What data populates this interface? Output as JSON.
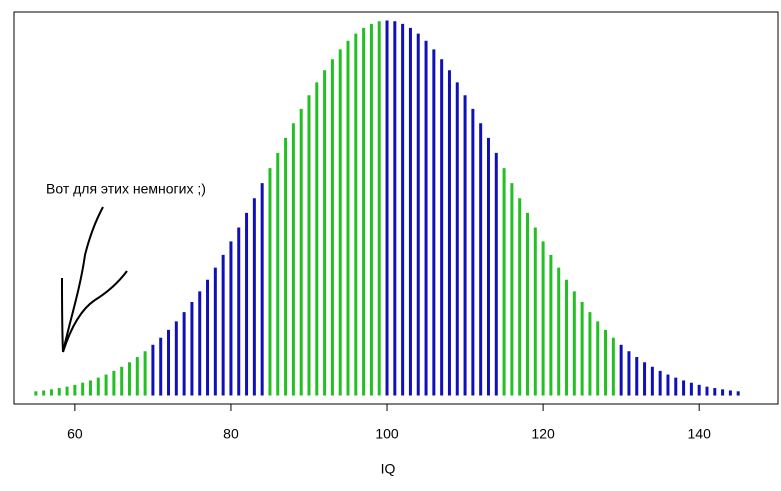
{
  "chart_data": {
    "type": "spike",
    "annotation": "Вот для этих немногих ;)",
    "xlabel": "IQ",
    "xlim": [
      52.2,
      150.1
    ],
    "ylim": [
      -0.0006,
      0.0272
    ],
    "xticks": [
      60,
      80,
      100,
      120,
      140
    ],
    "x": [
      55,
      56,
      57,
      58,
      59,
      60,
      61,
      62,
      63,
      64,
      65,
      66,
      67,
      68,
      69,
      70,
      71,
      72,
      73,
      74,
      75,
      76,
      77,
      78,
      79,
      80,
      81,
      82,
      83,
      84,
      85,
      86,
      87,
      88,
      89,
      90,
      91,
      92,
      93,
      94,
      95,
      96,
      97,
      98,
      99,
      100,
      101,
      102,
      103,
      104,
      105,
      106,
      107,
      108,
      109,
      110,
      111,
      112,
      113,
      114,
      115,
      116,
      117,
      118,
      119,
      120,
      121,
      122,
      123,
      124,
      125,
      126,
      127,
      128,
      129,
      130,
      131,
      132,
      133,
      134,
      135,
      136,
      137,
      138,
      139,
      140,
      141,
      142,
      143,
      144,
      145
    ],
    "values": [
      0.0003,
      0.00036,
      0.00044,
      0.00053,
      0.00063,
      0.00076,
      0.00091,
      0.00107,
      0.00127,
      0.00149,
      0.00175,
      0.00204,
      0.00236,
      0.00273,
      0.00314,
      0.0036,
      0.0041,
      0.00466,
      0.00526,
      0.00592,
      0.00663,
      0.00739,
      0.00821,
      0.00907,
      0.00998,
      0.01093,
      0.01192,
      0.01295,
      0.01399,
      0.01506,
      0.01613,
      0.01721,
      0.01827,
      0.01931,
      0.02033,
      0.0213,
      0.02221,
      0.02307,
      0.02385,
      0.02455,
      0.02516,
      0.02567,
      0.02607,
      0.02636,
      0.02654,
      0.0266,
      0.02654,
      0.02636,
      0.02607,
      0.02567,
      0.02516,
      0.02455,
      0.02385,
      0.02307,
      0.02221,
      0.0213,
      0.02033,
      0.01931,
      0.01827,
      0.01721,
      0.01613,
      0.01506,
      0.01399,
      0.01295,
      0.01192,
      0.01093,
      0.00998,
      0.00907,
      0.00821,
      0.00739,
      0.00663,
      0.00592,
      0.00526,
      0.00466,
      0.0041,
      0.0036,
      0.00314,
      0.00273,
      0.00236,
      0.00204,
      0.00175,
      0.00149,
      0.00127,
      0.00107,
      0.00091,
      0.00076,
      0.00063,
      0.00053,
      0.00044,
      0.00036,
      0.0003
    ],
    "colors": [
      "#22c022",
      "#22c022",
      "#22c022",
      "#22c022",
      "#22c022",
      "#22c022",
      "#22c022",
      "#22c022",
      "#22c022",
      "#22c022",
      "#22c022",
      "#22c022",
      "#22c022",
      "#22c022",
      "#22c022",
      "#1010b8",
      "#1010b8",
      "#1010b8",
      "#1010b8",
      "#1010b8",
      "#1010b8",
      "#1010b8",
      "#1010b8",
      "#1010b8",
      "#1010b8",
      "#1010b8",
      "#1010b8",
      "#1010b8",
      "#1010b8",
      "#1010b8",
      "#22c022",
      "#22c022",
      "#22c022",
      "#22c022",
      "#22c022",
      "#22c022",
      "#22c022",
      "#22c022",
      "#22c022",
      "#22c022",
      "#22c022",
      "#22c022",
      "#22c022",
      "#22c022",
      "#22c022",
      "#1010b8",
      "#1010b8",
      "#1010b8",
      "#1010b8",
      "#1010b8",
      "#1010b8",
      "#1010b8",
      "#1010b8",
      "#1010b8",
      "#1010b8",
      "#1010b8",
      "#1010b8",
      "#1010b8",
      "#1010b8",
      "#1010b8",
      "#22c022",
      "#22c022",
      "#22c022",
      "#22c022",
      "#22c022",
      "#22c022",
      "#22c022",
      "#22c022",
      "#22c022",
      "#22c022",
      "#22c022",
      "#22c022",
      "#22c022",
      "#22c022",
      "#22c022",
      "#1010b8",
      "#1010b8",
      "#1010b8",
      "#1010b8",
      "#1010b8",
      "#1010b8",
      "#1010b8",
      "#1010b8",
      "#1010b8",
      "#1010b8",
      "#1010b8",
      "#1010b8",
      "#1010b8",
      "#1010b8",
      "#1010b8",
      "#1010b8"
    ]
  }
}
